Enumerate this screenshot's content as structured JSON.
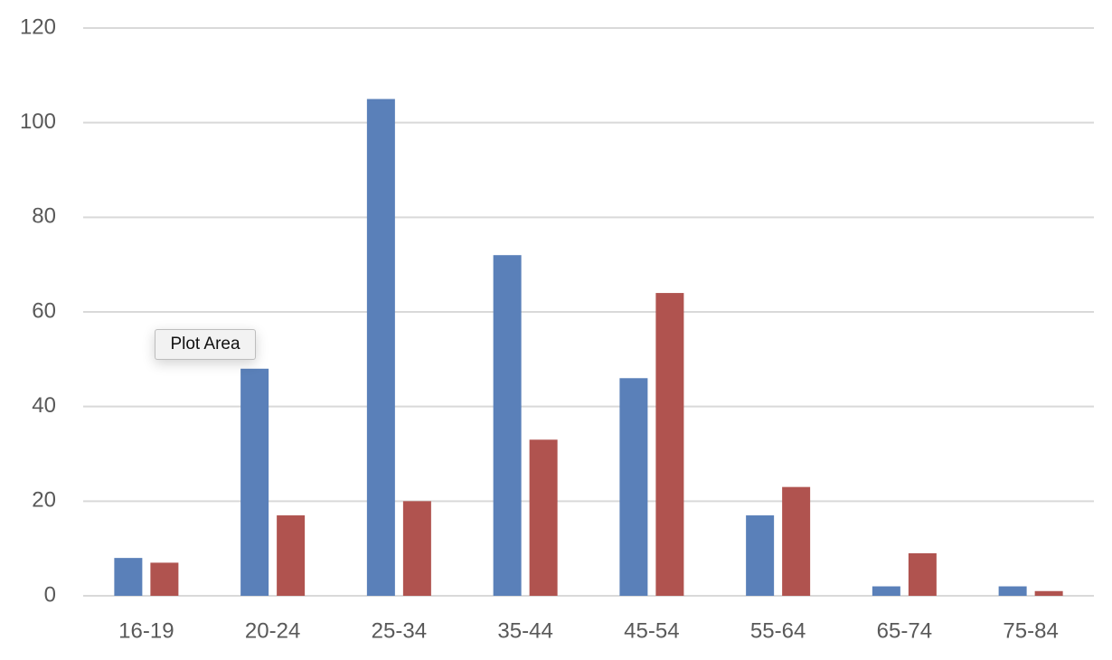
{
  "chart_data": {
    "type": "bar",
    "categories": [
      "16-19",
      "20-24",
      "25-34",
      "35-44",
      "45-54",
      "55-64",
      "65-74",
      "75-84"
    ],
    "series": [
      {
        "color": "#5a80b9",
        "values": [
          8,
          48,
          105,
          72,
          46,
          17,
          2,
          2
        ]
      },
      {
        "color": "#b0534f",
        "values": [
          7,
          17,
          20,
          33,
          64,
          23,
          9,
          1
        ]
      }
    ],
    "ylim": [
      0,
      120
    ],
    "yticks": [
      0,
      20,
      40,
      60,
      80,
      100,
      120
    ],
    "grid": true,
    "tooltip": "Plot Area"
  }
}
